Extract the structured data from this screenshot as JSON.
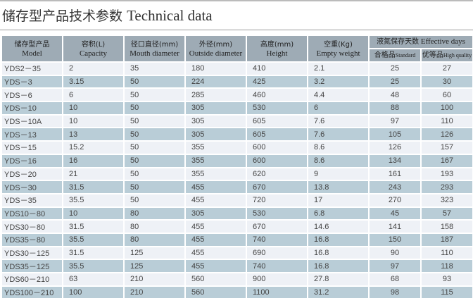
{
  "title_cn": "储存型产品技术参数",
  "title_en": "Technical data",
  "headers": {
    "model": {
      "cn": "储存型产品",
      "en": "Model"
    },
    "capacity": {
      "cn": "容积(L)",
      "en": "Capacity"
    },
    "mouth": {
      "cn": "径口直径(mm)",
      "en": "Mouth diameter"
    },
    "outside": {
      "cn": "外径(mm)",
      "en": "Outside diameter"
    },
    "height": {
      "cn": "高度(mm)",
      "en": "Height"
    },
    "weight": {
      "cn": "空重(Kg)",
      "en": "Empty weight"
    },
    "days": {
      "cn": "液氮保存天数",
      "en": "Effective days"
    },
    "standard": {
      "cn": "合格品",
      "en": "Standard"
    },
    "high": {
      "cn": "优等品",
      "en": "High quality"
    }
  },
  "rows": [
    [
      "YDS2－35",
      "2",
      "35",
      "180",
      "410",
      "2.1",
      "25",
      "27"
    ],
    [
      "YDS－3",
      "3.15",
      "50",
      "224",
      "425",
      "3.2",
      "25",
      "30"
    ],
    [
      "YDS－6",
      "6",
      "50",
      "285",
      "460",
      "4.4",
      "48",
      "60"
    ],
    [
      "YDS－10",
      "10",
      "50",
      "305",
      "530",
      "6",
      "88",
      "100"
    ],
    [
      "YDS－10A",
      "10",
      "50",
      "305",
      "605",
      "7.6",
      "97",
      "110"
    ],
    [
      "YDS－13",
      "13",
      "50",
      "305",
      "605",
      "7.6",
      "105",
      "126"
    ],
    [
      "YDS－15",
      "15.2",
      "50",
      "355",
      "600",
      "8.6",
      "126",
      "157"
    ],
    [
      "YDS－16",
      "16",
      "50",
      "355",
      "600",
      "8.6",
      "134",
      "167"
    ],
    [
      "YDS－20",
      "21",
      "50",
      "355",
      "620",
      "9",
      "161",
      "193"
    ],
    [
      "YDS－30",
      "31.5",
      "50",
      "455",
      "670",
      "13.8",
      "243",
      "293"
    ],
    [
      "YDS－35",
      "35.5",
      "50",
      "455",
      "720",
      "17",
      "270",
      "323"
    ],
    [
      "YDS10－80",
      "10",
      "80",
      "305",
      "530",
      "6.8",
      "45",
      "57"
    ],
    [
      "YDS30－80",
      "31.5",
      "80",
      "455",
      "670",
      "14.6",
      "141",
      "158"
    ],
    [
      "YDS35－80",
      "35.5",
      "80",
      "455",
      "740",
      "16.8",
      "150",
      "187"
    ],
    [
      "YDS30－125",
      "31.5",
      "125",
      "455",
      "690",
      "16.8",
      "90",
      "110"
    ],
    [
      "YDS35－125",
      "35.5",
      "125",
      "455",
      "740",
      "16.8",
      "97",
      "118"
    ],
    [
      "YDS60－210",
      "63",
      "210",
      "560",
      "900",
      "27.8",
      "68",
      "93"
    ],
    [
      "YDS100－210",
      "100",
      "210",
      "560",
      "1100",
      "31.2",
      "98",
      "115"
    ]
  ]
}
